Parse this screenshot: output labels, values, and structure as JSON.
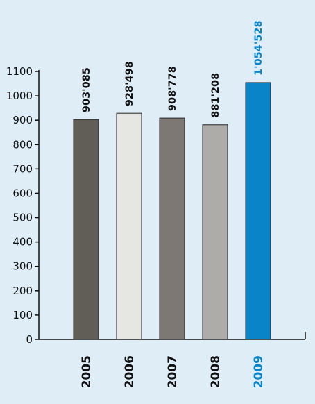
{
  "chart_data": {
    "type": "bar",
    "categories": [
      "2005",
      "2006",
      "2007",
      "2008",
      "2009"
    ],
    "values": [
      903.085,
      928.498,
      908.778,
      881.208,
      1054.528
    ],
    "value_labels": [
      "903'085",
      "928'498",
      "908'778",
      "881'208",
      "1'054'528"
    ],
    "ylim": [
      0,
      1100
    ],
    "yticks": [
      0,
      100,
      200,
      300,
      400,
      500,
      600,
      700,
      800,
      900,
      1000,
      1100
    ],
    "ytick_labels": [
      "0",
      "100",
      "200",
      "300",
      "400",
      "500",
      "600",
      "700",
      "800",
      "900",
      "1000",
      "1100"
    ],
    "title": "",
    "xlabel": "",
    "ylabel": "",
    "grid": false,
    "colors": {
      "bars": [
        "#615d57",
        "#e6e6e3",
        "#7d7874",
        "#aeaca9",
        "#0a84c9"
      ],
      "label_default": "#111111",
      "highlight": "#0a84c9",
      "axis": "#111111",
      "bar_outline": "#222222"
    },
    "highlight_index": 4
  }
}
